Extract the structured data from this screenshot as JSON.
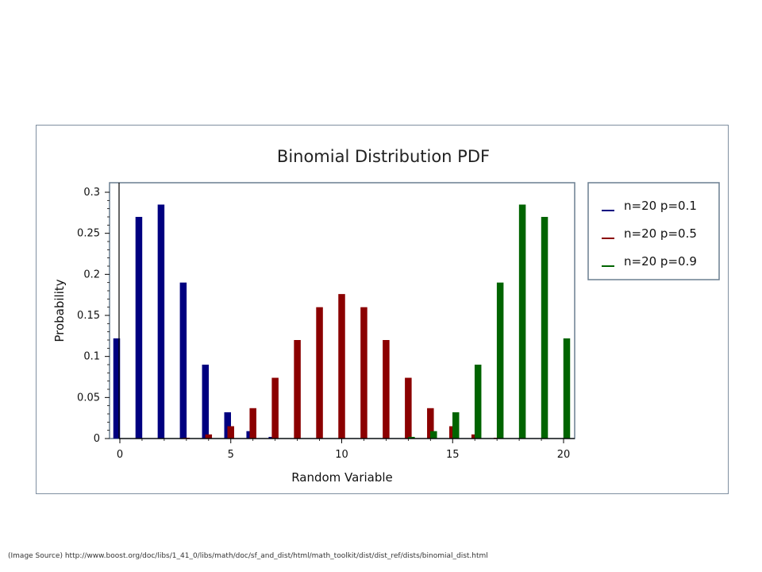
{
  "chart_data": {
    "type": "bar",
    "title": "Binomial Distribution PDF",
    "xlabel": "Random Variable",
    "ylabel": "Probability",
    "xlim": [
      -0.5,
      20.5
    ],
    "ylim": [
      0,
      0.3
    ],
    "x_ticks": [
      0,
      5,
      10,
      15,
      20
    ],
    "y_ticks": [
      "0",
      "0.05",
      "0.1",
      "0.15",
      "0.2",
      "0.25",
      "0.3"
    ],
    "grid": false,
    "legend_position": "right",
    "x": [
      0,
      1,
      2,
      3,
      4,
      5,
      6,
      7,
      8,
      9,
      10,
      11,
      12,
      13,
      14,
      15,
      16,
      17,
      18,
      19,
      20
    ],
    "series": [
      {
        "name": "n=20 p=0.1",
        "color": "#000080",
        "values": [
          0.122,
          0.27,
          0.285,
          0.19,
          0.09,
          0.032,
          0.009,
          0.002,
          0.0004,
          0,
          0,
          0,
          0,
          0,
          0,
          0,
          0,
          0,
          0,
          0,
          0
        ]
      },
      {
        "name": "n=20 p=0.5",
        "color": "#8b0000",
        "values": [
          0,
          0,
          0.0002,
          0.001,
          0.005,
          0.015,
          0.037,
          0.074,
          0.12,
          0.16,
          0.176,
          0.16,
          0.12,
          0.074,
          0.037,
          0.015,
          0.005,
          0.001,
          0.0002,
          0,
          0
        ]
      },
      {
        "name": "n=20 p=0.9",
        "color": "#006400",
        "values": [
          0,
          0,
          0,
          0,
          0,
          0,
          0,
          0,
          0,
          0,
          0,
          0,
          0.0004,
          0.002,
          0.009,
          0.032,
          0.09,
          0.19,
          0.285,
          0.27,
          0.122
        ]
      }
    ]
  },
  "source_note": "(Image Source) http://www.boost.org/doc/libs/1_41_0/libs/math/doc/sf_and_dist/html/math_toolkit/dist/dist_ref/dists/binomial_dist.html"
}
